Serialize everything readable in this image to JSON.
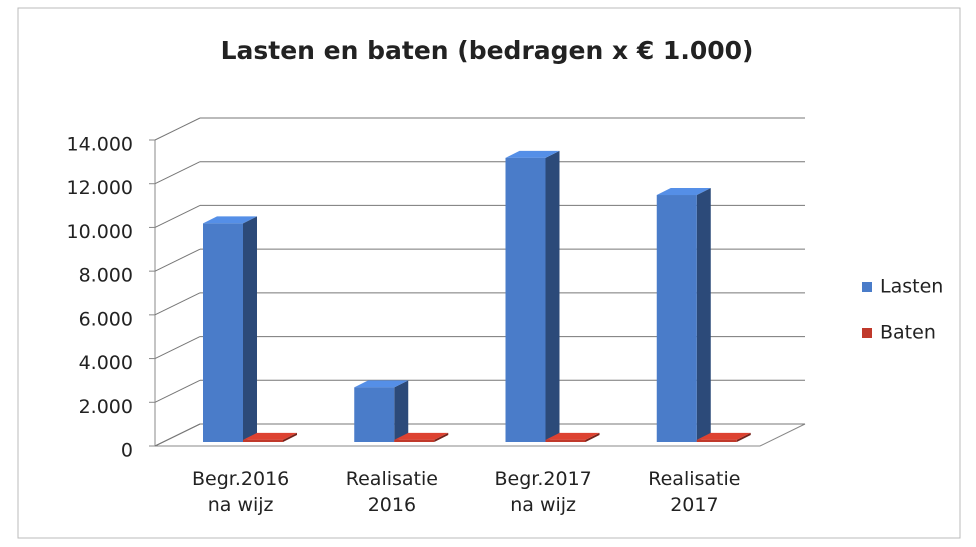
{
  "chart_data": {
    "type": "bar3d",
    "title": "Lasten en baten (bedragen x € 1.000)",
    "categories": [
      "Begr.2016 na wijz",
      "Realisatie 2016",
      "Begr.2017 na wijz",
      "Realisatie 2017"
    ],
    "series": [
      {
        "name": "Lasten",
        "color": "#4a7cc9",
        "values": [
          10000,
          2500,
          13000,
          11300
        ]
      },
      {
        "name": "Baten",
        "color": "#c0392b",
        "values": [
          100,
          100,
          100,
          100
        ]
      }
    ],
    "ylim": [
      0,
      14000
    ],
    "yticks": [
      0,
      {
        "value": 2000,
        "label": "2.000"
      },
      {
        "value": 4000,
        "label": "4.000"
      },
      {
        "value": 6000,
        "label": "6.000"
      },
      {
        "value": 8000,
        "label": "8.000"
      },
      {
        "value": 10000,
        "label": "10.000"
      },
      {
        "value": 12000,
        "label": "12.000"
      },
      {
        "value": 14000,
        "label": "14.000"
      }
    ],
    "grid": true,
    "legend": "right"
  }
}
